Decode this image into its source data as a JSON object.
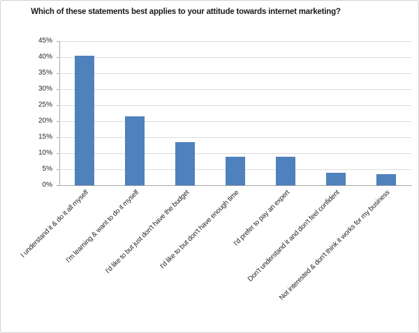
{
  "chart_data": {
    "type": "bar",
    "title": "Which of these statements best applies to your attitude towards internet marketing?",
    "categories": [
      "I understand it & do it all myself",
      "I'm learning & want to do it myself",
      "I'd like to but just don't have the budget",
      "I'd like to but don't have enough time",
      "I'd prefer to pay an expert",
      "Don't understand it and don't feel confident",
      "Not interested & don't think it works for my business"
    ],
    "values": [
      40.5,
      21.5,
      13.5,
      9,
      9,
      4,
      3.5
    ],
    "value_unit": "%",
    "xlabel": "",
    "ylabel": "",
    "ylim": [
      0,
      45
    ],
    "ytick_step": 5,
    "ytick_labels": [
      "0%",
      "5%",
      "10%",
      "15%",
      "20%",
      "25%",
      "30%",
      "35%",
      "40%",
      "45%"
    ],
    "grid": "horizontal",
    "legend": "none",
    "x_label_rotation_deg": 45,
    "colors": {
      "bar": "#4F81BD",
      "gridline": "#dcdcdc",
      "axis_line": "#a6a6a6",
      "tick_text": "#262626",
      "title_text": "#1a1a1a",
      "background": "#ffffff",
      "frame_border": "#d0d0d0"
    }
  }
}
